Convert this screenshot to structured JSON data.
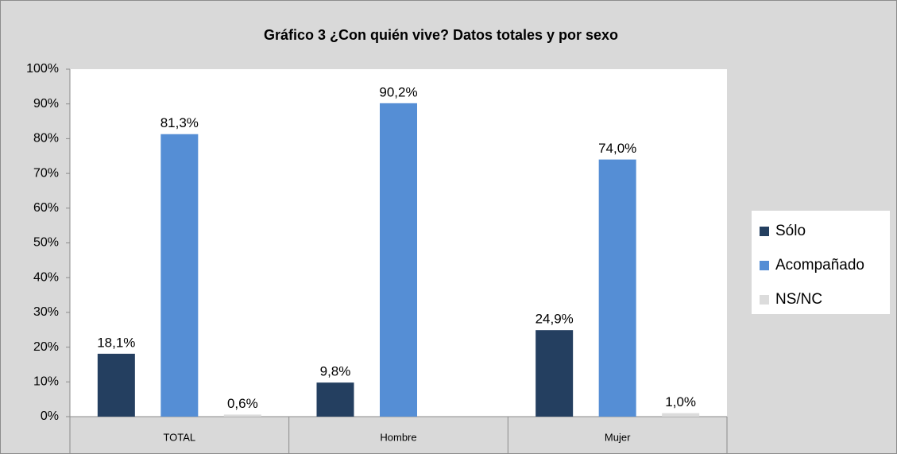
{
  "chart_data": {
    "type": "bar",
    "title": "Gráfico 3  ¿Con quién vive? Datos totales y por sexo",
    "categories": [
      "TOTAL",
      "Hombre",
      "Mujer"
    ],
    "series": [
      {
        "name": "Sólo",
        "color": "#243f60",
        "values": [
          18.1,
          9.8,
          24.9
        ],
        "value_labels": [
          "18,1%",
          "9,8%",
          "24,9%"
        ]
      },
      {
        "name": "Acompañado",
        "color": "#558ed5",
        "values": [
          81.3,
          90.2,
          74.0
        ],
        "value_labels": [
          "81,3%",
          "90,2%",
          "74,0%"
        ]
      },
      {
        "name": "NS/NC",
        "color": "#dcdcdc",
        "values": [
          0.6,
          null,
          1.0
        ],
        "value_labels": [
          "0,6%",
          null,
          "1,0%"
        ]
      }
    ],
    "ylim": [
      0,
      100
    ],
    "yticks": [
      {
        "value": 0,
        "label": "0%"
      },
      {
        "value": 10,
        "label": "10%"
      },
      {
        "value": 20,
        "label": "20%"
      },
      {
        "value": 30,
        "label": "30%"
      },
      {
        "value": 40,
        "label": "40%"
      },
      {
        "value": 50,
        "label": "50%"
      },
      {
        "value": 60,
        "label": "60%"
      },
      {
        "value": 70,
        "label": "70%"
      },
      {
        "value": 80,
        "label": "80%"
      },
      {
        "value": 90,
        "label": "90%"
      },
      {
        "value": 100,
        "label": "100%"
      }
    ],
    "grid": false,
    "legend": "right"
  }
}
